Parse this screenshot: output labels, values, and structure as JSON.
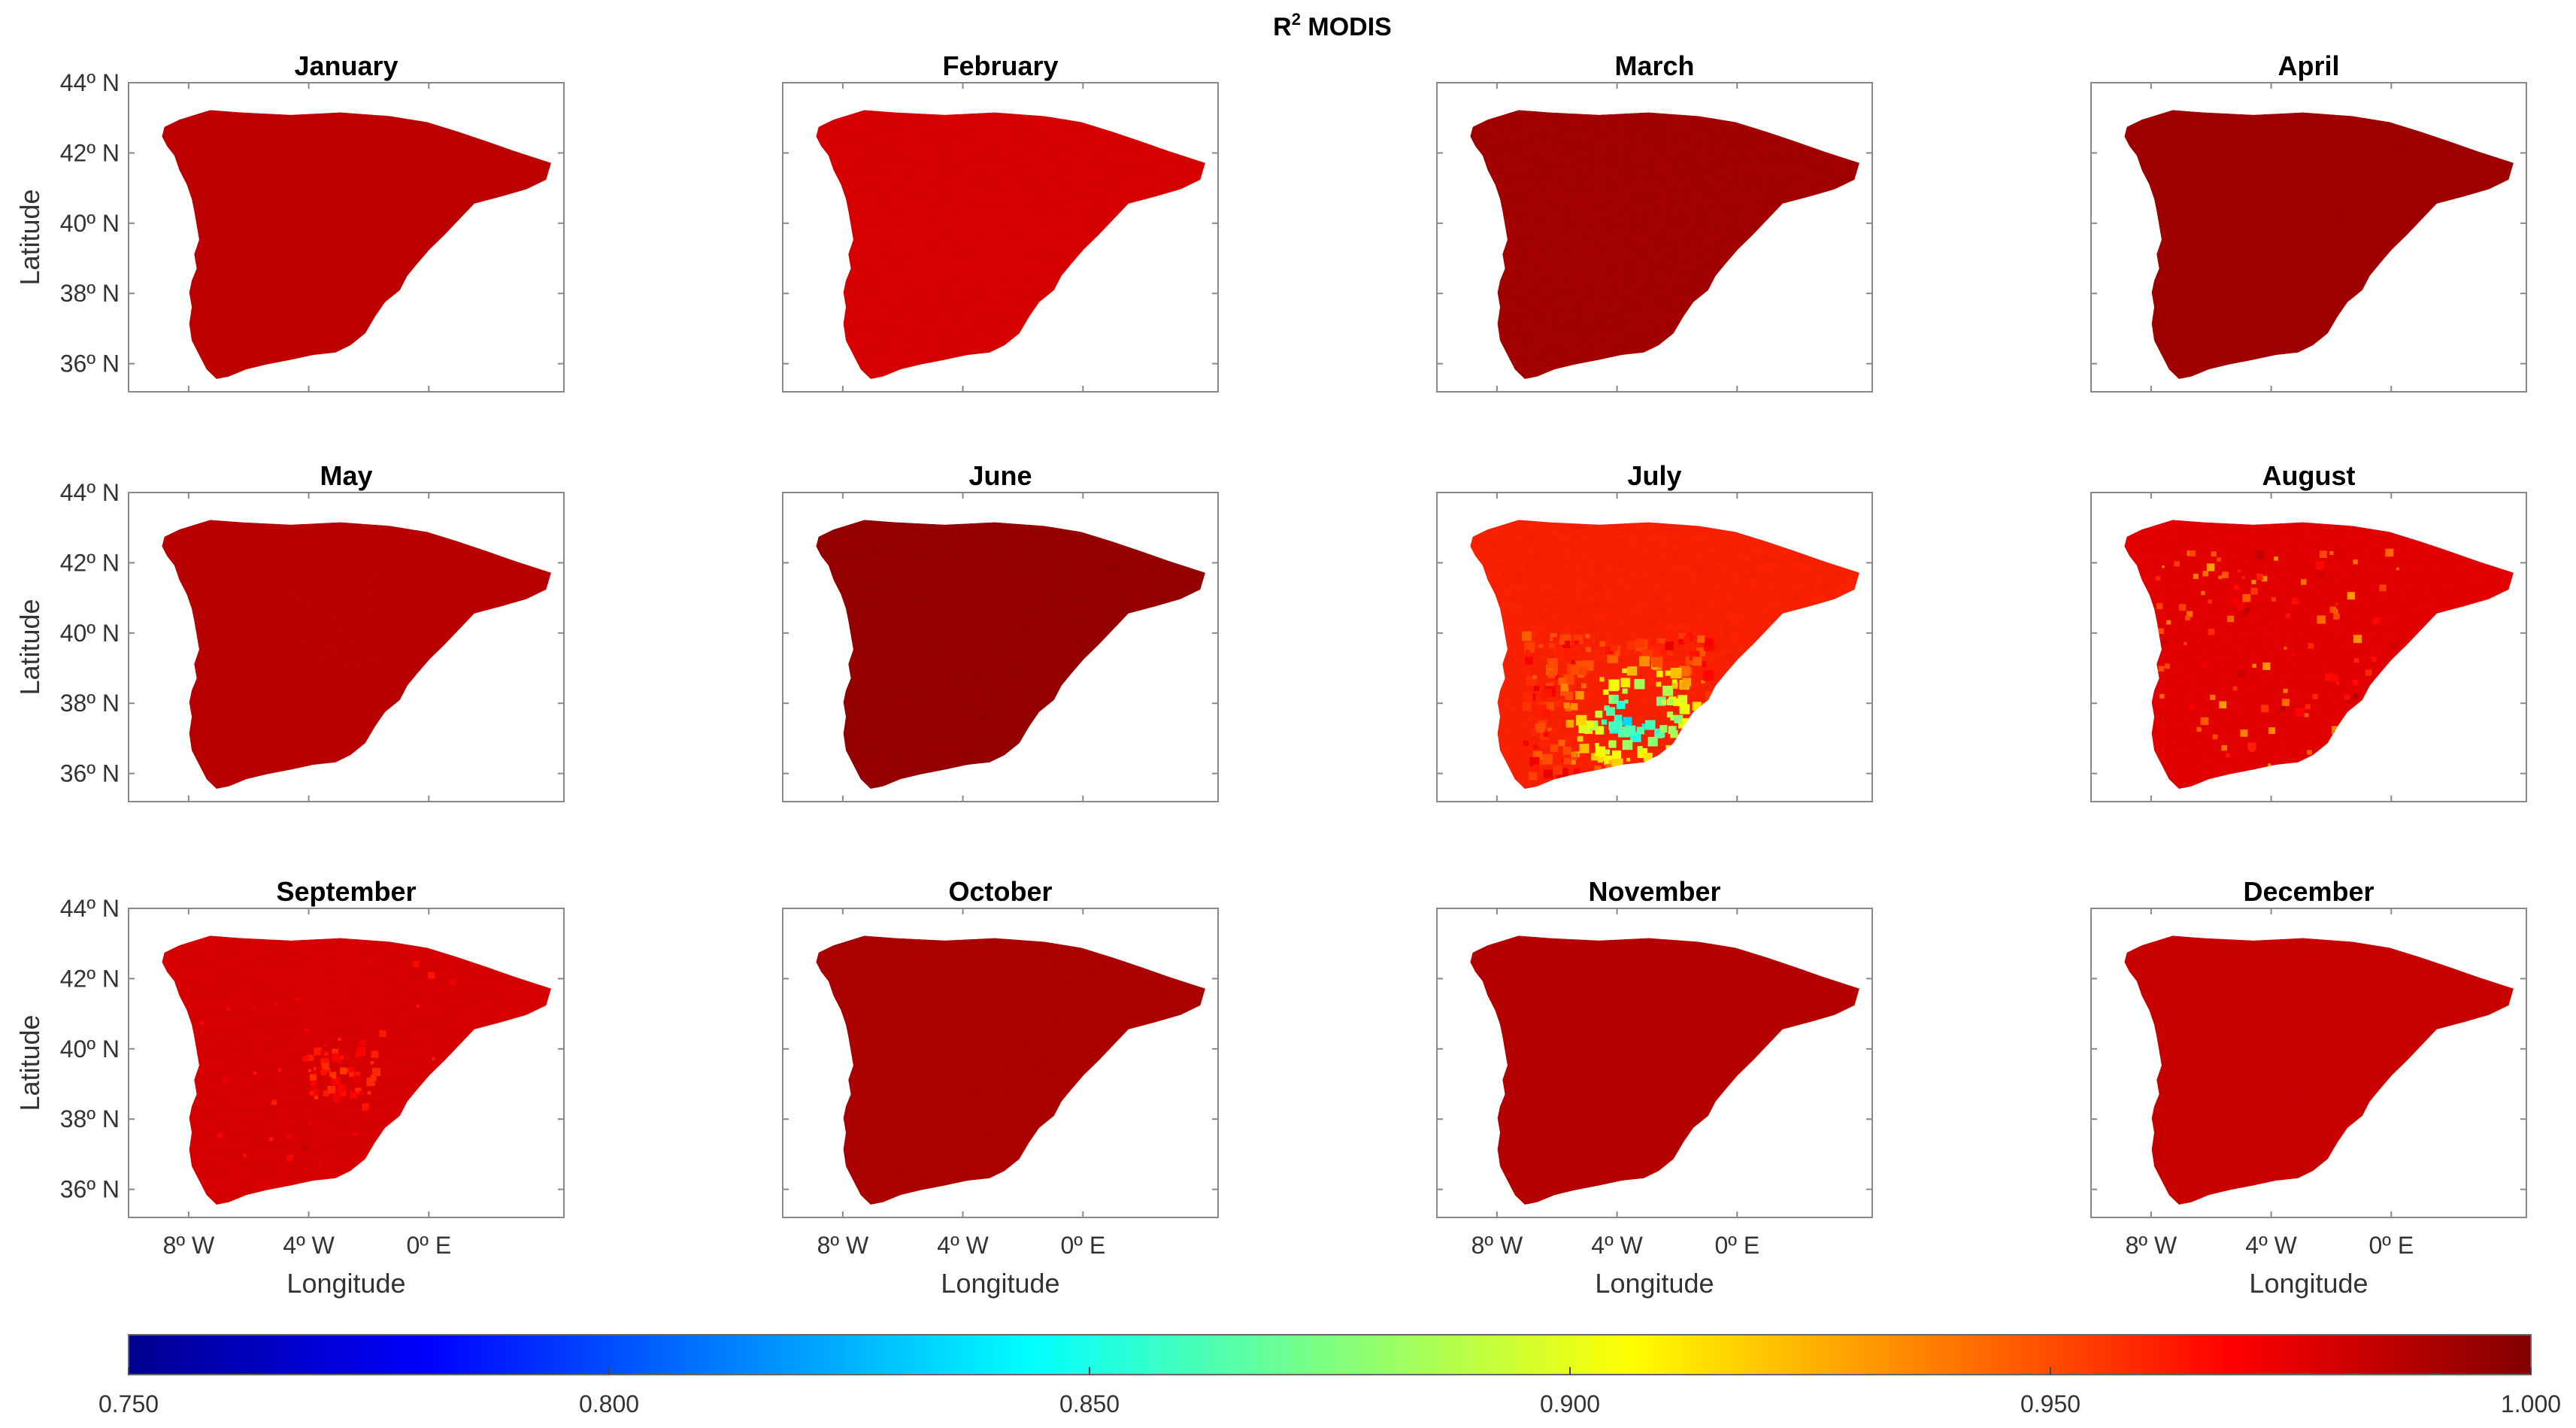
{
  "chart_data": {
    "type": "heatmap",
    "title": {
      "main": "R",
      "superscript": "2",
      "suffix": " MODIS"
    },
    "xlabel": "Longitude",
    "ylabel": "Latitude",
    "x_ticks": [
      "8º W",
      "4º W",
      "0º E"
    ],
    "x_tick_values": [
      -8,
      -4,
      0
    ],
    "y_ticks": [
      "44º N",
      "42º N",
      "40º N",
      "38º N",
      "36º N"
    ],
    "y_tick_values": [
      44,
      42,
      40,
      38,
      36
    ],
    "xlim": [
      -10,
      4.5
    ],
    "ylim": [
      35.2,
      44
    ],
    "colorbar": {
      "colormap": "jet",
      "range": [
        0.75,
        1.0
      ],
      "ticks": [
        "0.750",
        "0.800",
        "0.850",
        "0.900",
        "0.950",
        "1.000"
      ],
      "tick_values": [
        0.75,
        0.8,
        0.85,
        0.9,
        0.95,
        1.0
      ]
    },
    "panels": [
      {
        "title": "January",
        "base_r2": 0.985
      },
      {
        "title": "February",
        "base_r2": 0.978
      },
      {
        "title": "March",
        "base_r2": 0.992
      },
      {
        "title": "April",
        "base_r2": 0.993
      },
      {
        "title": "May",
        "base_r2": 0.986
      },
      {
        "title": "June",
        "base_r2": 0.996
      },
      {
        "title": "July",
        "base_r2": 0.96,
        "low_region_min_r2": 0.83
      },
      {
        "title": "August",
        "base_r2": 0.975,
        "low_region_min_r2": 0.93
      },
      {
        "title": "September",
        "base_r2": 0.978,
        "low_region_min_r2": 0.955
      },
      {
        "title": "October",
        "base_r2": 0.99
      },
      {
        "title": "November",
        "base_r2": 0.987
      },
      {
        "title": "December",
        "base_r2": 0.982
      }
    ]
  }
}
